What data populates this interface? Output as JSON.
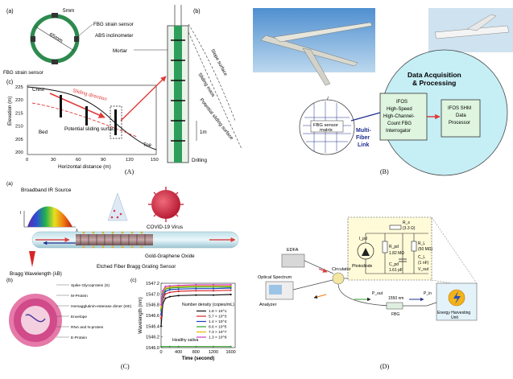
{
  "panelA": {
    "caption": "(A)",
    "sub_a": "(a)",
    "sub_b": "(b)",
    "sub_c": "(c)",
    "ring_dim": "5mm",
    "ring_diam": "65mm",
    "fbg_sensor_left": "FBG strain sensor",
    "fbg_sensor_right": "FBG strain sensor",
    "abs_incl": "ABS inclinometer",
    "mortar": "Mortar",
    "slope_surface": "Slope surface",
    "sliding_mass": "Sliding mass",
    "potential_surface": "Potential sliding surface",
    "drilling": "Drilling",
    "scale": "1m",
    "crest": "Crest",
    "sliding_dir": "Sliding direction",
    "bed": "Bed",
    "pot_surface_c": "Potential sliding surface",
    "toe": "Toe",
    "ylabel": "Elevation (m)",
    "xlabel": "Horizontal distance (m)",
    "yticks": [
      "225",
      "220",
      "215",
      "210",
      "205",
      "200"
    ],
    "xticks": [
      "0",
      "30",
      "60",
      "90",
      "120",
      "150"
    ]
  },
  "panelB": {
    "caption": "(B)",
    "daq_title_1": "Data Acquisition",
    "daq_title_2": "& Processing",
    "ifos_1": "IFOS",
    "ifos_2": "High-Speed",
    "ifos_3": "High-Channel-",
    "ifos_4": "Count FBG",
    "ifos_5": "Interrogator",
    "shm_1": "IFOS SHM",
    "shm_2": "Data",
    "shm_3": "Processor",
    "fbg_matrix_1": "FBG sensor",
    "fbg_matrix_2": "matrix",
    "multi_1": "Multi-",
    "multi_2": "Fiber",
    "multi_3": "Link"
  },
  "panelC": {
    "caption": "(C)",
    "sub_a": "(a)",
    "sub_b": "(b)",
    "sub_c": "(c)",
    "ir_source": "Broadband IR Source",
    "covid": "COVID-19 Virus",
    "gold_oxide": "Gold-Graphene Oxide",
    "bragg_wl": "Bragg Wavelength (λB)",
    "etched": "Etched Fiber Bragg Grating Sensor",
    "i_label": "I",
    "lambda_label": "λ",
    "virus_labels": [
      "Spike Glycoprotein (S)",
      "M-Protein",
      "Hemagglutinin-esterase dimer (HE)",
      "Envelope",
      "RNA and N-protein",
      "E-Protein"
    ],
    "chart_ylabel": "Wavelength (nm)",
    "chart_xlabel": "Time (second)",
    "legend_title": "Number density (copies/mL)",
    "healthy": "Healthy saliva",
    "yticks": [
      "1547.2",
      "1547.0",
      "1546.8",
      "1546.6",
      "1546.4",
      "1546.2",
      "1546.0"
    ],
    "xticks": [
      "0",
      "400",
      "800",
      "1200",
      "1600"
    ]
  },
  "panelD": {
    "caption": "(D)",
    "edfa": "EDFA",
    "osa_1": "Optical Spectrum",
    "osa_2": "Analyzer",
    "circulator": "Circulator",
    "fiber_1": "1550 nm",
    "fiber_2": "FBG",
    "photodiode": "Photodiode",
    "r_pd": "R_pd",
    "r_pd_val": "1.82 MΩ",
    "c_pd": "C_pd",
    "c_pd_val": "1.61 pF",
    "r_s": "R_s",
    "r_s_val": "(3.3 Ω)",
    "r_l": "R_L",
    "r_l_val": "(50 MΩ)",
    "c_l": "C_L",
    "c_l_val": "(1 nF)",
    "i_pd": "I_pd",
    "v_out": "V_out",
    "energy_1": "Energy Harvesting",
    "energy_2": "Unit",
    "p_in": "P_in",
    "p_out": "P_out"
  },
  "chart_data": {
    "type": "line",
    "xlabel": "Time (second)",
    "ylabel": "Wavelength (nm)",
    "xlim": [
      0,
      1700
    ],
    "ylim": [
      1546.0,
      1547.2
    ],
    "legend_title": "Number density (copies/mL)",
    "legend_position": "center-right",
    "series": [
      {
        "name": "1.8 × 10^1",
        "color": "#111111",
        "x": [
          0,
          40,
          100,
          200,
          400,
          800,
          1200,
          1600
        ],
        "y": [
          1546.4,
          1546.82,
          1546.92,
          1546.95,
          1546.97,
          1546.98,
          1546.98,
          1546.99
        ]
      },
      {
        "name": "5.7 × 10^3",
        "color": "#d62728",
        "x": [
          0,
          40,
          100,
          200,
          400,
          800,
          1200,
          1600
        ],
        "y": [
          1546.55,
          1546.9,
          1547.0,
          1547.03,
          1547.05,
          1547.06,
          1547.06,
          1547.07
        ]
      },
      {
        "name": "1.4 × 10^4",
        "color": "#1f3fbf",
        "x": [
          0,
          40,
          100,
          200,
          400,
          800,
          1200,
          1600
        ],
        "y": [
          1546.62,
          1546.95,
          1547.05,
          1547.08,
          1547.09,
          1547.1,
          1547.1,
          1547.11
        ]
      },
      {
        "name": "8.6 × 10^5",
        "color": "#2ca02c",
        "x": [
          0,
          40,
          100,
          200,
          400,
          800,
          1200,
          1600
        ],
        "y": [
          1546.7,
          1547.0,
          1547.09,
          1547.11,
          1547.12,
          1547.13,
          1547.13,
          1547.13
        ]
      },
      {
        "name": "7.3 × 10^7",
        "color": "#e6b800",
        "x": [
          0,
          40,
          100,
          200,
          400,
          800,
          1200,
          1600
        ],
        "y": [
          1546.75,
          1547.03,
          1547.11,
          1547.13,
          1547.14,
          1547.15,
          1547.15,
          1547.15
        ]
      },
      {
        "name": "1.3 × 10^9",
        "color": "#c83cc8",
        "x": [
          0,
          40,
          100,
          200,
          400,
          800,
          1200,
          1600
        ],
        "y": [
          1546.8,
          1547.06,
          1547.14,
          1547.15,
          1547.16,
          1547.17,
          1547.17,
          1547.17
        ]
      },
      {
        "name": "Healthy saliva",
        "color": "#3aa63a",
        "x": [
          0,
          200,
          400,
          800,
          1200,
          1600
        ],
        "y": [
          1546.02,
          1546.02,
          1546.02,
          1546.02,
          1546.02,
          1546.02
        ]
      }
    ]
  },
  "colors": {
    "circle_fill": "#c5eef5",
    "green_box": "#dff5df",
    "yellow_panel": "#fffbd9",
    "link_blue": "#1f2f8f",
    "red_arrow": "#e03a3a"
  }
}
